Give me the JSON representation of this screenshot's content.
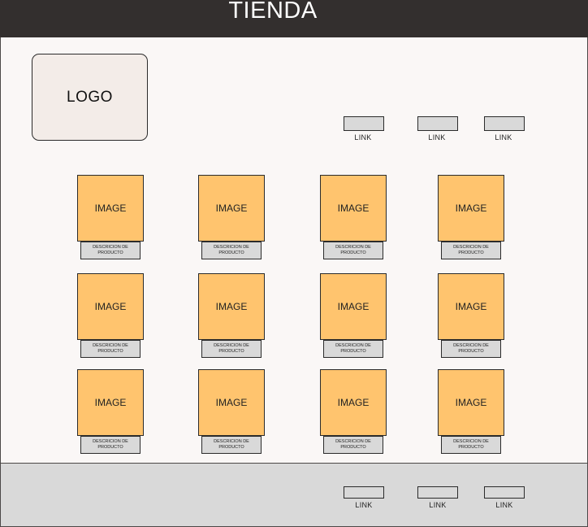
{
  "header": {
    "title": "TIENDA"
  },
  "logo": {
    "label": "LOGO"
  },
  "nav": {
    "links": [
      "LINK",
      "LINK",
      "LINK"
    ]
  },
  "products": {
    "image_label": "IMAGE",
    "description_label": "DESCRICION DE PRODUCTO",
    "rows": 3,
    "columns": 4
  },
  "footer": {
    "links": [
      "LINK",
      "LINK",
      "LINK"
    ]
  },
  "colors": {
    "header_bg": "#332f2e",
    "main_bg": "#faf7f6",
    "logo_bg": "#f3ece8",
    "image_bg": "#ffc46e",
    "box_gray": "#d9d9d9"
  }
}
